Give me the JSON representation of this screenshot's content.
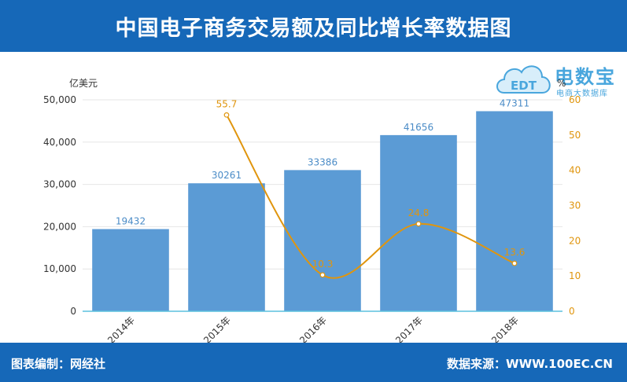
{
  "header": {
    "title": "中国电子商务交易额及同比增长率数据图"
  },
  "footer": {
    "left": "图表编制：网经社",
    "right": "数据来源：WWW.100EC.CN"
  },
  "logo": {
    "icon_text": "EDT",
    "text": "电数宝",
    "sub": "电商大数据库"
  },
  "chart_data": {
    "type": "bar",
    "categories": [
      "2014年",
      "2015年",
      "2016年",
      "2017年",
      "2018年"
    ],
    "series": [
      {
        "type": "bar",
        "values": [
          19432,
          30261,
          33386,
          41656,
          47311
        ],
        "labels": [
          "19432",
          "30261",
          "33386",
          "41656",
          "47311"
        ],
        "color": "#5b9bd5"
      },
      {
        "type": "line",
        "values": [
          null,
          55.7,
          10.3,
          24.8,
          13.6
        ],
        "labels": [
          "",
          "55.7",
          "10.3",
          "24.8",
          "13.6"
        ],
        "color": "#e0950d"
      }
    ],
    "ylabel_left": "亿美元",
    "ylabel_right": "%",
    "ylim_left": [
      0,
      50000
    ],
    "ylim_right": [
      0,
      60
    ],
    "yticks_left": [
      "0",
      "10,000",
      "20,000",
      "30,000",
      "40,000",
      "50,000"
    ],
    "yticks_right": [
      "0",
      "10",
      "20",
      "30",
      "40",
      "50",
      "60"
    ],
    "grid": true
  }
}
